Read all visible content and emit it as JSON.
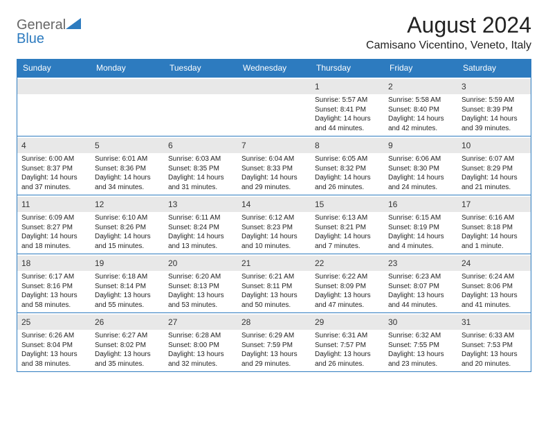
{
  "colors": {
    "header_bg": "#2d7bbf",
    "header_text": "#ffffff",
    "daynum_bg": "#e8e8e8",
    "border": "#2d7bbf",
    "text": "#222222",
    "logo_gray": "#666666",
    "logo_blue": "#2d7bbf"
  },
  "logo": {
    "part1": "General",
    "part2": "Blue"
  },
  "title": "August 2024",
  "location": "Camisano Vicentino, Veneto, Italy",
  "days_of_week": [
    "Sunday",
    "Monday",
    "Tuesday",
    "Wednesday",
    "Thursday",
    "Friday",
    "Saturday"
  ],
  "weeks": [
    [
      null,
      null,
      null,
      null,
      {
        "n": "1",
        "sr": "5:57 AM",
        "ss": "8:41 PM",
        "dl": "14 hours and 44 minutes."
      },
      {
        "n": "2",
        "sr": "5:58 AM",
        "ss": "8:40 PM",
        "dl": "14 hours and 42 minutes."
      },
      {
        "n": "3",
        "sr": "5:59 AM",
        "ss": "8:39 PM",
        "dl": "14 hours and 39 minutes."
      }
    ],
    [
      {
        "n": "4",
        "sr": "6:00 AM",
        "ss": "8:37 PM",
        "dl": "14 hours and 37 minutes."
      },
      {
        "n": "5",
        "sr": "6:01 AM",
        "ss": "8:36 PM",
        "dl": "14 hours and 34 minutes."
      },
      {
        "n": "6",
        "sr": "6:03 AM",
        "ss": "8:35 PM",
        "dl": "14 hours and 31 minutes."
      },
      {
        "n": "7",
        "sr": "6:04 AM",
        "ss": "8:33 PM",
        "dl": "14 hours and 29 minutes."
      },
      {
        "n": "8",
        "sr": "6:05 AM",
        "ss": "8:32 PM",
        "dl": "14 hours and 26 minutes."
      },
      {
        "n": "9",
        "sr": "6:06 AM",
        "ss": "8:30 PM",
        "dl": "14 hours and 24 minutes."
      },
      {
        "n": "10",
        "sr": "6:07 AM",
        "ss": "8:29 PM",
        "dl": "14 hours and 21 minutes."
      }
    ],
    [
      {
        "n": "11",
        "sr": "6:09 AM",
        "ss": "8:27 PM",
        "dl": "14 hours and 18 minutes."
      },
      {
        "n": "12",
        "sr": "6:10 AM",
        "ss": "8:26 PM",
        "dl": "14 hours and 15 minutes."
      },
      {
        "n": "13",
        "sr": "6:11 AM",
        "ss": "8:24 PM",
        "dl": "14 hours and 13 minutes."
      },
      {
        "n": "14",
        "sr": "6:12 AM",
        "ss": "8:23 PM",
        "dl": "14 hours and 10 minutes."
      },
      {
        "n": "15",
        "sr": "6:13 AM",
        "ss": "8:21 PM",
        "dl": "14 hours and 7 minutes."
      },
      {
        "n": "16",
        "sr": "6:15 AM",
        "ss": "8:19 PM",
        "dl": "14 hours and 4 minutes."
      },
      {
        "n": "17",
        "sr": "6:16 AM",
        "ss": "8:18 PM",
        "dl": "14 hours and 1 minute."
      }
    ],
    [
      {
        "n": "18",
        "sr": "6:17 AM",
        "ss": "8:16 PM",
        "dl": "13 hours and 58 minutes."
      },
      {
        "n": "19",
        "sr": "6:18 AM",
        "ss": "8:14 PM",
        "dl": "13 hours and 55 minutes."
      },
      {
        "n": "20",
        "sr": "6:20 AM",
        "ss": "8:13 PM",
        "dl": "13 hours and 53 minutes."
      },
      {
        "n": "21",
        "sr": "6:21 AM",
        "ss": "8:11 PM",
        "dl": "13 hours and 50 minutes."
      },
      {
        "n": "22",
        "sr": "6:22 AM",
        "ss": "8:09 PM",
        "dl": "13 hours and 47 minutes."
      },
      {
        "n": "23",
        "sr": "6:23 AM",
        "ss": "8:07 PM",
        "dl": "13 hours and 44 minutes."
      },
      {
        "n": "24",
        "sr": "6:24 AM",
        "ss": "8:06 PM",
        "dl": "13 hours and 41 minutes."
      }
    ],
    [
      {
        "n": "25",
        "sr": "6:26 AM",
        "ss": "8:04 PM",
        "dl": "13 hours and 38 minutes."
      },
      {
        "n": "26",
        "sr": "6:27 AM",
        "ss": "8:02 PM",
        "dl": "13 hours and 35 minutes."
      },
      {
        "n": "27",
        "sr": "6:28 AM",
        "ss": "8:00 PM",
        "dl": "13 hours and 32 minutes."
      },
      {
        "n": "28",
        "sr": "6:29 AM",
        "ss": "7:59 PM",
        "dl": "13 hours and 29 minutes."
      },
      {
        "n": "29",
        "sr": "6:31 AM",
        "ss": "7:57 PM",
        "dl": "13 hours and 26 minutes."
      },
      {
        "n": "30",
        "sr": "6:32 AM",
        "ss": "7:55 PM",
        "dl": "13 hours and 23 minutes."
      },
      {
        "n": "31",
        "sr": "6:33 AM",
        "ss": "7:53 PM",
        "dl": "13 hours and 20 minutes."
      }
    ]
  ],
  "labels": {
    "sunrise": "Sunrise:",
    "sunset": "Sunset:",
    "daylight": "Daylight:"
  }
}
